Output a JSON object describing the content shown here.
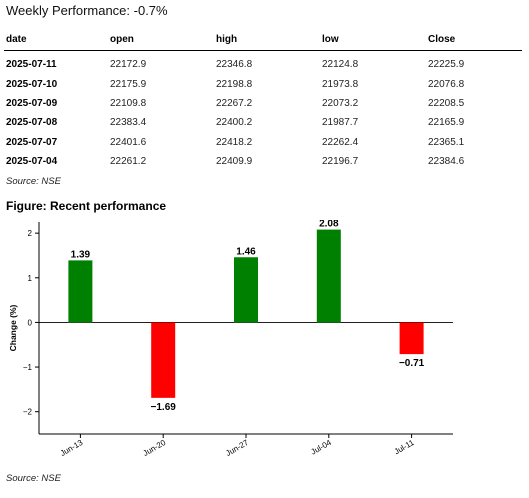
{
  "headline": "Weekly Performance: -0.7%",
  "table": {
    "headers": [
      "date",
      "open",
      "high",
      "low",
      "Close"
    ],
    "rows": [
      [
        "2025-07-11",
        "22172.9",
        "22346.8",
        "22124.8",
        "22225.9"
      ],
      [
        "2025-07-10",
        "22175.9",
        "22198.8",
        "21973.8",
        "22076.8"
      ],
      [
        "2025-07-09",
        "22109.8",
        "22267.2",
        "22073.2",
        "22208.5"
      ],
      [
        "2025-07-08",
        "22383.4",
        "22400.2",
        "21987.7",
        "22165.9"
      ],
      [
        "2025-07-07",
        "22401.6",
        "22418.2",
        "22262.4",
        "22365.1"
      ],
      [
        "2025-07-04",
        "22261.2",
        "22409.9",
        "22196.7",
        "22384.6"
      ]
    ]
  },
  "source_top": "Source: NSE",
  "figure_title": "Figure: Recent performance",
  "source_bottom": "Source: NSE",
  "chart_data": {
    "type": "bar",
    "categories": [
      "Jun-13",
      "Jun-20",
      "Jun-27",
      "Jul-04",
      "Jul-11"
    ],
    "values": [
      1.39,
      -1.69,
      1.46,
      2.08,
      -0.71
    ],
    "value_labels": [
      "1.39",
      "−1.69",
      "1.46",
      "2.08",
      "−0.71"
    ],
    "ylabel": "Change (%)",
    "yticks": [
      2,
      1,
      0,
      -1,
      -2
    ],
    "ytick_labels": [
      "2",
      "1",
      "0",
      "−1",
      "−2"
    ],
    "ylim": [
      -2.5,
      2.25
    ],
    "positive_color": "#008000",
    "negative_color": "#ff0000",
    "grid": false
  }
}
